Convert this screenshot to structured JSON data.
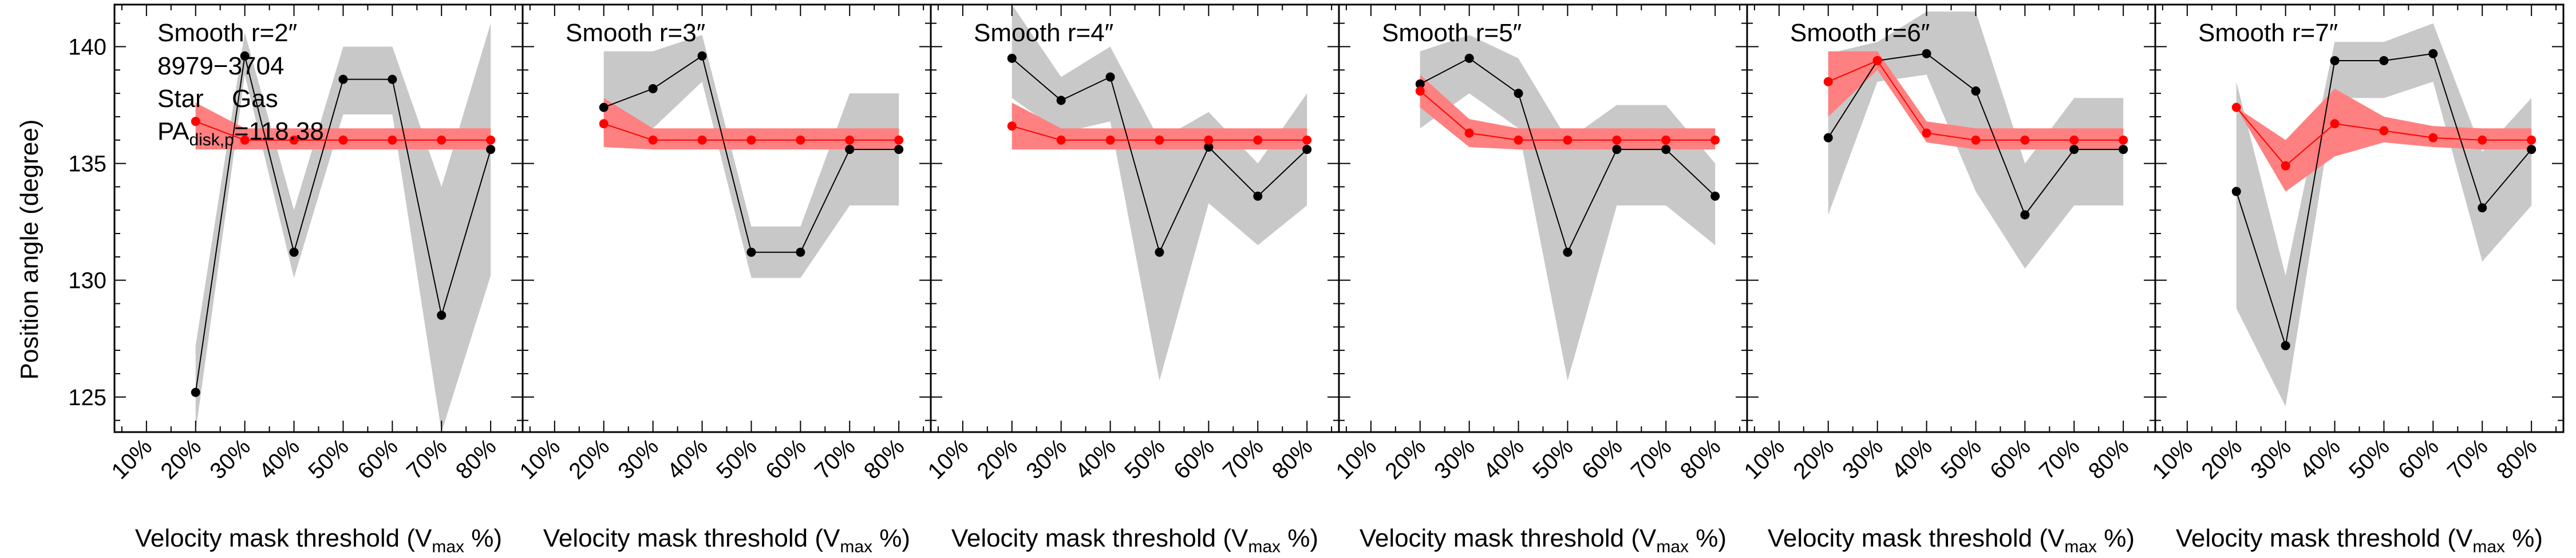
{
  "figure": {
    "ylabel": "Position angle (degree)",
    "xlabel_main": "Velocity mask threshold (V",
    "xlabel_sub": "max",
    "xlabel_end": " %)",
    "legend": {
      "id": "8979−3704",
      "star": "Star",
      "gas": "Gas",
      "pa_main": "PA",
      "pa_sub": "disk,p",
      "pa_value": "=118.38"
    },
    "colors": {
      "star": "#000000",
      "star_band": "#c8c8c8",
      "gas": "#ff0000",
      "gas_band": "#ff8080"
    }
  },
  "chart_data": [
    {
      "type": "line",
      "title": "Smooth r=2″",
      "categories": [
        "10%",
        "20%",
        "30%",
        "40%",
        "50%",
        "60%",
        "70%",
        "80%"
      ],
      "ylim": [
        123.5,
        141.8
      ],
      "yticks": [
        125,
        130,
        135,
        140
      ],
      "series": [
        {
          "name": "Star",
          "x": [
            20,
            30,
            40,
            50,
            60,
            70,
            80
          ],
          "values": [
            125.2,
            139.6,
            131.2,
            138.6,
            138.6,
            128.5,
            135.6
          ],
          "band_low": [
            123.5,
            138.8,
            130.1,
            137.1,
            137.1,
            123.5,
            130.2
          ],
          "band_high": [
            127.2,
            140.6,
            133.0,
            140.0,
            140.0,
            134.0,
            141.0
          ]
        },
        {
          "name": "Gas",
          "x": [
            20,
            30,
            40,
            50,
            60,
            70,
            80
          ],
          "values": [
            136.8,
            136.0,
            136.0,
            136.0,
            136.0,
            136.0,
            136.0
          ],
          "band_low": [
            135.6,
            135.6,
            135.6,
            135.6,
            135.6,
            135.6,
            135.6
          ],
          "band_high": [
            137.6,
            136.5,
            136.5,
            136.5,
            136.5,
            136.5,
            136.5
          ]
        }
      ]
    },
    {
      "type": "line",
      "title": "Smooth r=3″",
      "categories": [
        "10%",
        "20%",
        "30%",
        "40%",
        "50%",
        "60%",
        "70%",
        "80%"
      ],
      "ylim": [
        123.5,
        141.8
      ],
      "yticks": [
        125,
        130,
        135,
        140
      ],
      "series": [
        {
          "name": "Star",
          "x": [
            20,
            30,
            40,
            50,
            60,
            70,
            80
          ],
          "values": [
            137.4,
            138.2,
            139.6,
            131.2,
            131.2,
            135.6,
            135.6
          ],
          "band_low": [
            136.0,
            136.5,
            138.5,
            130.1,
            130.1,
            133.2,
            133.2
          ],
          "band_high": [
            139.8,
            139.8,
            140.5,
            132.3,
            132.3,
            138.0,
            138.0
          ]
        },
        {
          "name": "Gas",
          "x": [
            20,
            30,
            40,
            50,
            60,
            70,
            80
          ],
          "values": [
            136.7,
            136.0,
            136.0,
            136.0,
            136.0,
            136.0,
            136.0
          ],
          "band_low": [
            135.7,
            135.6,
            135.6,
            135.6,
            135.6,
            135.6,
            135.6
          ],
          "band_high": [
            137.8,
            136.5,
            136.5,
            136.5,
            136.5,
            136.5,
            136.5
          ]
        }
      ]
    },
    {
      "type": "line",
      "title": "Smooth r=4″",
      "categories": [
        "10%",
        "20%",
        "30%",
        "40%",
        "50%",
        "60%",
        "70%",
        "80%"
      ],
      "ylim": [
        123.5,
        141.8
      ],
      "yticks": [
        125,
        130,
        135,
        140
      ],
      "series": [
        {
          "name": "Star",
          "x": [
            20,
            30,
            40,
            50,
            60,
            70,
            80
          ],
          "values": [
            139.5,
            137.7,
            138.7,
            131.2,
            135.7,
            133.6,
            135.6
          ],
          "band_low": [
            137.8,
            136.3,
            136.8,
            125.7,
            133.3,
            131.5,
            133.2
          ],
          "band_high": [
            141.8,
            138.7,
            140.0,
            136.0,
            137.2,
            135.0,
            138.0
          ]
        },
        {
          "name": "Gas",
          "x": [
            20,
            30,
            40,
            50,
            60,
            70,
            80
          ],
          "values": [
            136.6,
            136.0,
            136.0,
            136.0,
            136.0,
            136.0,
            136.0
          ],
          "band_low": [
            135.6,
            135.6,
            135.6,
            135.6,
            135.6,
            135.6,
            135.6
          ],
          "band_high": [
            137.6,
            136.5,
            136.5,
            136.5,
            136.5,
            136.5,
            136.5
          ]
        }
      ]
    },
    {
      "type": "line",
      "title": "Smooth r=5″",
      "categories": [
        "10%",
        "20%",
        "30%",
        "40%",
        "50%",
        "60%",
        "70%",
        "80%"
      ],
      "ylim": [
        123.5,
        141.8
      ],
      "yticks": [
        125,
        130,
        135,
        140
      ],
      "series": [
        {
          "name": "Star",
          "x": [
            20,
            30,
            40,
            50,
            60,
            70,
            80
          ],
          "values": [
            138.4,
            139.5,
            138.0,
            131.2,
            135.6,
            135.6,
            133.6
          ],
          "band_low": [
            136.5,
            138.0,
            136.5,
            125.7,
            133.2,
            133.2,
            131.5
          ],
          "band_high": [
            139.8,
            140.5,
            139.5,
            136.0,
            137.5,
            137.5,
            135.0
          ]
        },
        {
          "name": "Gas",
          "x": [
            20,
            30,
            40,
            50,
            60,
            70,
            80
          ],
          "values": [
            138.1,
            136.3,
            136.0,
            136.0,
            136.0,
            136.0,
            136.0
          ],
          "band_low": [
            137.4,
            135.7,
            135.6,
            135.6,
            135.6,
            135.6,
            135.6
          ],
          "band_high": [
            138.8,
            136.9,
            136.5,
            136.5,
            136.5,
            136.5,
            136.5
          ]
        }
      ]
    },
    {
      "type": "line",
      "title": "Smooth r=6″",
      "categories": [
        "10%",
        "20%",
        "30%",
        "40%",
        "50%",
        "60%",
        "70%",
        "80%"
      ],
      "ylim": [
        123.5,
        141.8
      ],
      "yticks": [
        125,
        130,
        135,
        140
      ],
      "series": [
        {
          "name": "Star",
          "x": [
            20,
            30,
            40,
            50,
            60,
            70,
            80
          ],
          "values": [
            136.1,
            139.4,
            139.7,
            138.1,
            132.8,
            135.6,
            135.6
          ],
          "band_low": [
            132.8,
            138.5,
            138.8,
            133.8,
            130.5,
            133.2,
            133.2
          ],
          "band_high": [
            139.7,
            140.2,
            141.5,
            141.5,
            135.0,
            137.8,
            137.8
          ]
        },
        {
          "name": "Gas",
          "x": [
            20,
            30,
            40,
            50,
            60,
            70,
            80
          ],
          "values": [
            138.5,
            139.4,
            136.3,
            136.0,
            136.0,
            136.0,
            136.0
          ],
          "band_low": [
            137.0,
            139.0,
            135.9,
            135.6,
            135.6,
            135.6,
            135.6
          ],
          "band_high": [
            139.8,
            139.8,
            136.8,
            136.5,
            136.5,
            136.5,
            136.5
          ]
        }
      ]
    },
    {
      "type": "line",
      "title": "Smooth r=7″",
      "categories": [
        "10%",
        "20%",
        "30%",
        "40%",
        "50%",
        "60%",
        "70%",
        "80%"
      ],
      "ylim": [
        123.5,
        141.8
      ],
      "yticks": [
        125,
        130,
        135,
        140
      ],
      "series": [
        {
          "name": "Star",
          "x": [
            20,
            30,
            40,
            50,
            60,
            70,
            80
          ],
          "values": [
            133.8,
            127.2,
            139.4,
            139.4,
            139.7,
            133.1,
            135.6
          ],
          "band_low": [
            128.8,
            124.6,
            137.8,
            137.8,
            138.5,
            130.8,
            133.2
          ],
          "band_high": [
            138.5,
            130.2,
            140.2,
            140.2,
            141.0,
            135.5,
            137.8
          ]
        },
        {
          "name": "Gas",
          "x": [
            20,
            30,
            40,
            50,
            60,
            70,
            80
          ],
          "values": [
            137.4,
            134.9,
            136.7,
            136.4,
            136.1,
            136.0,
            136.0
          ],
          "band_low": [
            137.4,
            133.8,
            135.3,
            135.9,
            135.7,
            135.6,
            135.6
          ],
          "band_high": [
            137.4,
            136.0,
            138.2,
            137.0,
            136.6,
            136.5,
            136.5
          ]
        }
      ]
    }
  ]
}
